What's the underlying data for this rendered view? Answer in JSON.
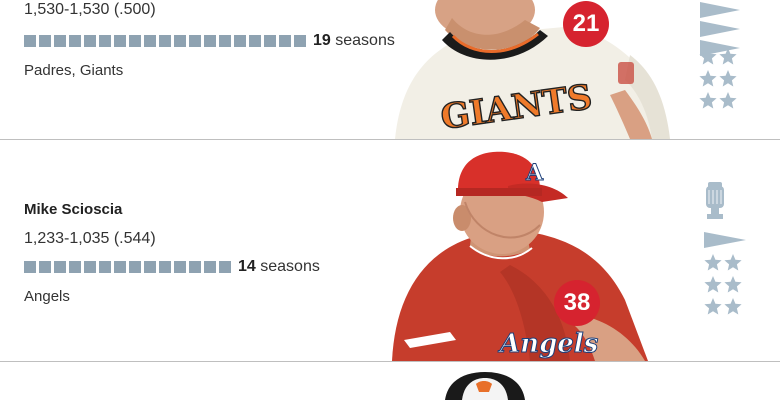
{
  "managers": [
    {
      "name": "",
      "record": "1,530-1,530 (.500)",
      "seasons_count": 19,
      "seasons_number": "19",
      "seasons_word": "seasons",
      "teams": "Padres, Giants",
      "jersey_number": "21",
      "cap_letter": "",
      "jersey_text": "GIANTS",
      "pennants": 3,
      "titles": 0,
      "stars": 6
    },
    {
      "name": "Mike Scioscia",
      "record": "1,233-1,035 (.544)",
      "seasons_count": 14,
      "seasons_number": "14",
      "seasons_word": "seasons",
      "teams": "Angels",
      "jersey_number": "38",
      "cap_letter": "A",
      "jersey_text": "Angels",
      "pennants": 1,
      "titles": 1,
      "stars": 6
    }
  ],
  "colors": {
    "bar": "#8ea2b1",
    "badge": "#d6232f",
    "icon": "#a9bcca",
    "divider": "#bfbfbf"
  },
  "icons": {
    "pennant": "pennant-icon",
    "star": "star-icon",
    "trophy": "world-series-trophy-icon"
  }
}
